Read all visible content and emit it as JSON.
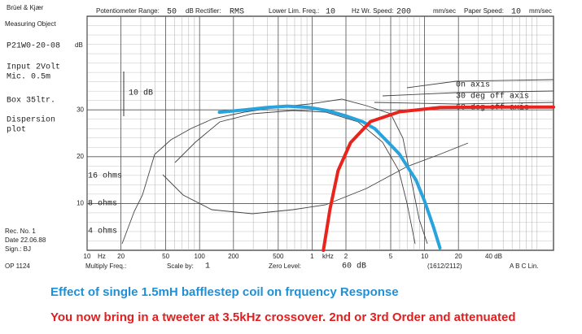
{
  "chart_data": {
    "type": "line",
    "xscale": "log",
    "xlim": [
      10,
      140000
    ],
    "ylim": [
      0,
      50
    ],
    "xticks": [
      10,
      20,
      50,
      100,
      200,
      500,
      {
        "value": 1000,
        "label": "1"
      },
      {
        "value": 2000,
        "label": "2"
      },
      {
        "value": 5000,
        "label": "5"
      },
      {
        "value": 10000,
        "label": "10"
      },
      {
        "value": 20000,
        "label": "20"
      }
    ],
    "yticks": [
      10,
      20,
      30
    ],
    "grid": true,
    "series": [
      {
        "name": "Effect of single 1.5mH bafflestep coil on frquency Response",
        "color": "#29a3dc",
        "x": [
          150,
          250,
          400,
          600,
          950,
          1400,
          2000,
          2800,
          3600,
          5000,
          6000,
          8400,
          10000,
          12000,
          13700
        ],
        "values": [
          29.5,
          30,
          30.5,
          30.8,
          30.5,
          29.8,
          28.7,
          27.5,
          26,
          22.5,
          20.5,
          15,
          10.5,
          5,
          0.5
        ]
      },
      {
        "name": "You now bring in a tweeter at 3.5kHz crossover. 2nd or 3rd Order and attenuated",
        "color": "#e8241c",
        "x": [
          1260,
          1440,
          1700,
          2200,
          3300,
          6000,
          13700,
          40000,
          140000
        ],
        "values": [
          0,
          8.7,
          17,
          23,
          27.5,
          29.6,
          30.5,
          30.6,
          30.6
        ]
      }
    ],
    "header": [
      "Brüel & Kjær",
      "Potentiometer Range:",
      "50",
      "dB Rectifier:",
      "RMS",
      "Lower Lim. Freq.:",
      "10",
      "Hz Wr. Speed:",
      "200",
      "mm/sec",
      "Paper Speed:",
      "10",
      "mm/sec"
    ],
    "sidebar": [
      "Measuring Object",
      "P21W0-20-08",
      "Input 2Volt",
      "Mic. 0.5m",
      "Box 35ltr.",
      "Dispersion",
      "plot",
      "Rec. No. 1",
      "Date 22.06.88",
      "Sign.: BJ",
      "OP 1124"
    ],
    "annotations": [
      "10 dB",
      "16 ohms",
      "8 ohms",
      "4 ohms",
      "0n axis",
      "30 deg off axis",
      "60 deg off axis",
      "Hz",
      "kHz",
      "dB"
    ],
    "footer": [
      "Multiply Freq.:",
      "Scale by:",
      "1",
      "Zero Level:",
      "60 dB",
      "(1612/2112)",
      "40 dB",
      "A B C Lin."
    ]
  }
}
